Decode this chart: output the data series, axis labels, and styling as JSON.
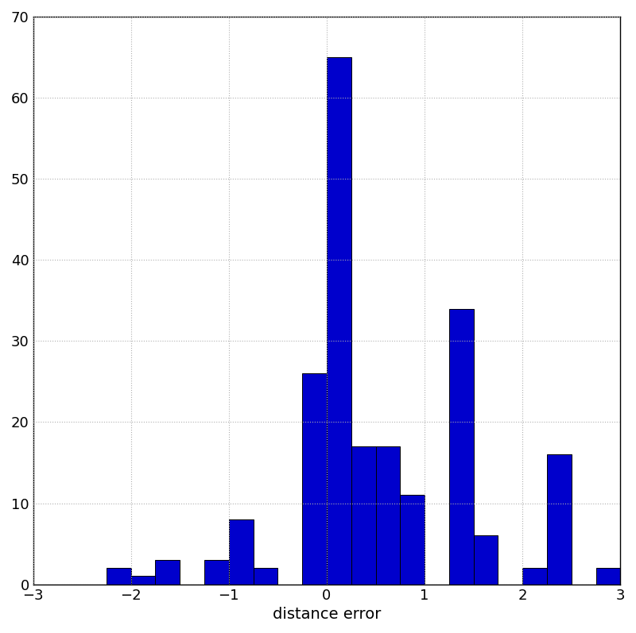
{
  "bin_width": 0.25,
  "bin_left_edges": [
    -2.25,
    -2.0,
    -1.75,
    -1.5,
    -1.25,
    -1.0,
    -0.75,
    -0.5,
    -0.25,
    0.0,
    0.25,
    0.5,
    0.75,
    1.0,
    1.25,
    1.5,
    1.75,
    2.0,
    2.25,
    2.75
  ],
  "counts": [
    2,
    1,
    3,
    0,
    3,
    8,
    2,
    0,
    26,
    65,
    17,
    17,
    11,
    0,
    34,
    6,
    0,
    2,
    16,
    2
  ],
  "bar_color": "#0000cc",
  "bar_edgecolor": "#000000",
  "xlabel": "distance error",
  "xlim": [
    -3,
    3
  ],
  "ylim": [
    0,
    70
  ],
  "yticks": [
    0,
    10,
    20,
    30,
    40,
    50,
    60,
    70
  ],
  "xticks": [
    -3,
    -2,
    -1,
    0,
    1,
    2,
    3
  ],
  "grid_linestyle": ":",
  "grid_color": "#b0b0b0",
  "background_color": "#ffffff",
  "xlabel_fontsize": 14,
  "tick_fontsize": 13,
  "figsize": [
    8.0,
    7.97
  ],
  "dpi": 100
}
